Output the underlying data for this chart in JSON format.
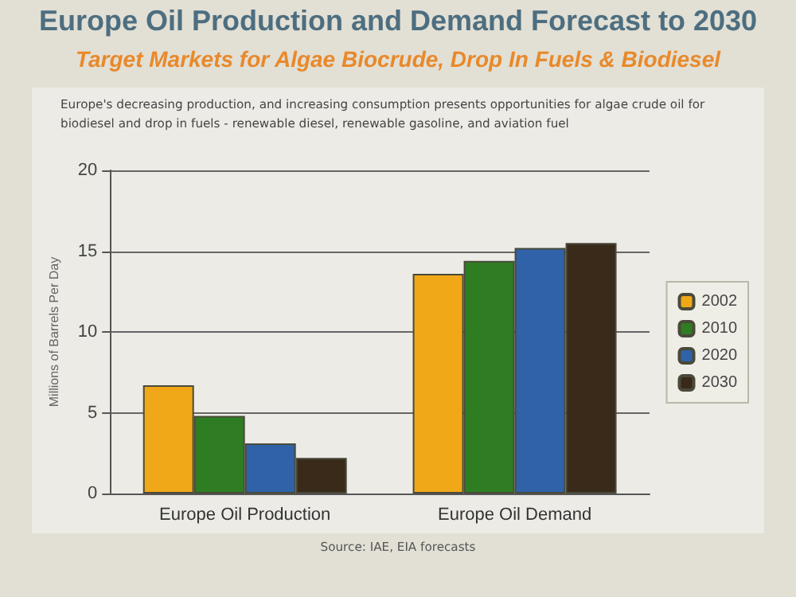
{
  "chart_data": {
    "type": "bar",
    "title": "Europe Oil Production and Demand Forecast to 2030",
    "subtitle": "Target Markets for Algae Biocrude, Drop In Fuels & Biodiesel",
    "annotations": [
      "Europe's decreasing production, and increasing consumption presents opportunities for algae crude oil for biodiesel and drop in fuels - renewable diesel, renewable gasoline, and aviation fuel",
      "Source: IAE, EIA forecasts"
    ],
    "ylabel": "Millions of Barrels Per Day",
    "categories": [
      "Europe Oil Production",
      "Europe Oil Demand"
    ],
    "series": [
      {
        "name": "2002",
        "color": "#f0a818",
        "values": [
          6.7,
          13.6
        ]
      },
      {
        "name": "2010",
        "color": "#2e7d23",
        "values": [
          4.8,
          14.4
        ]
      },
      {
        "name": "2020",
        "color": "#2f62a8",
        "values": [
          3.1,
          15.2
        ]
      },
      {
        "name": "2030",
        "color": "#3a2a1a",
        "values": [
          2.2,
          15.5
        ]
      }
    ],
    "ylim": [
      0,
      20
    ],
    "yticks": [
      0,
      5,
      10,
      15,
      20
    ],
    "grid": "y",
    "legend": "right"
  }
}
